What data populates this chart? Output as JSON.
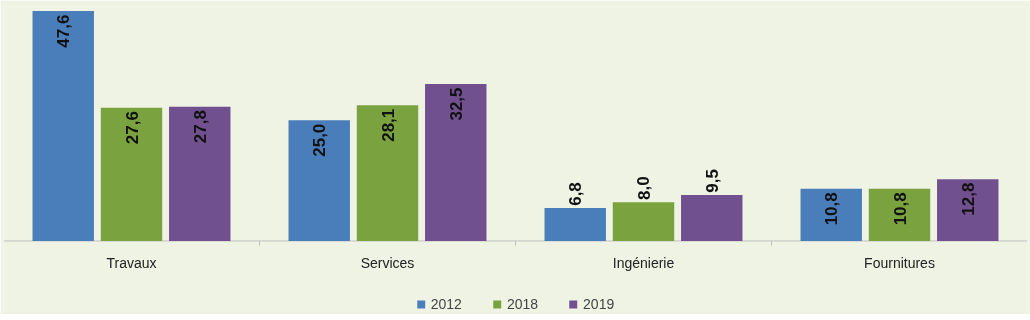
{
  "chart_data": {
    "type": "bar",
    "categories": [
      "Travaux",
      "Services",
      "Ingénierie",
      "Fournitures"
    ],
    "series": [
      {
        "name": "2012",
        "color": "#4a7ebb",
        "values": [
          47.6,
          25.0,
          6.8,
          10.8
        ],
        "value_labels": [
          "47,6",
          "25,0",
          "6,8",
          "10,8"
        ]
      },
      {
        "name": "2018",
        "color": "#7aa23f",
        "values": [
          27.6,
          28.1,
          8.0,
          10.8
        ],
        "value_labels": [
          "27,6",
          "28,1",
          "8,0",
          "10,8"
        ]
      },
      {
        "name": "2019",
        "color": "#70508f",
        "values": [
          27.8,
          32.5,
          9.5,
          12.8
        ],
        "value_labels": [
          "27,8",
          "32,5",
          "9,5",
          "12,8"
        ]
      }
    ],
    "legend": "bottom"
  }
}
